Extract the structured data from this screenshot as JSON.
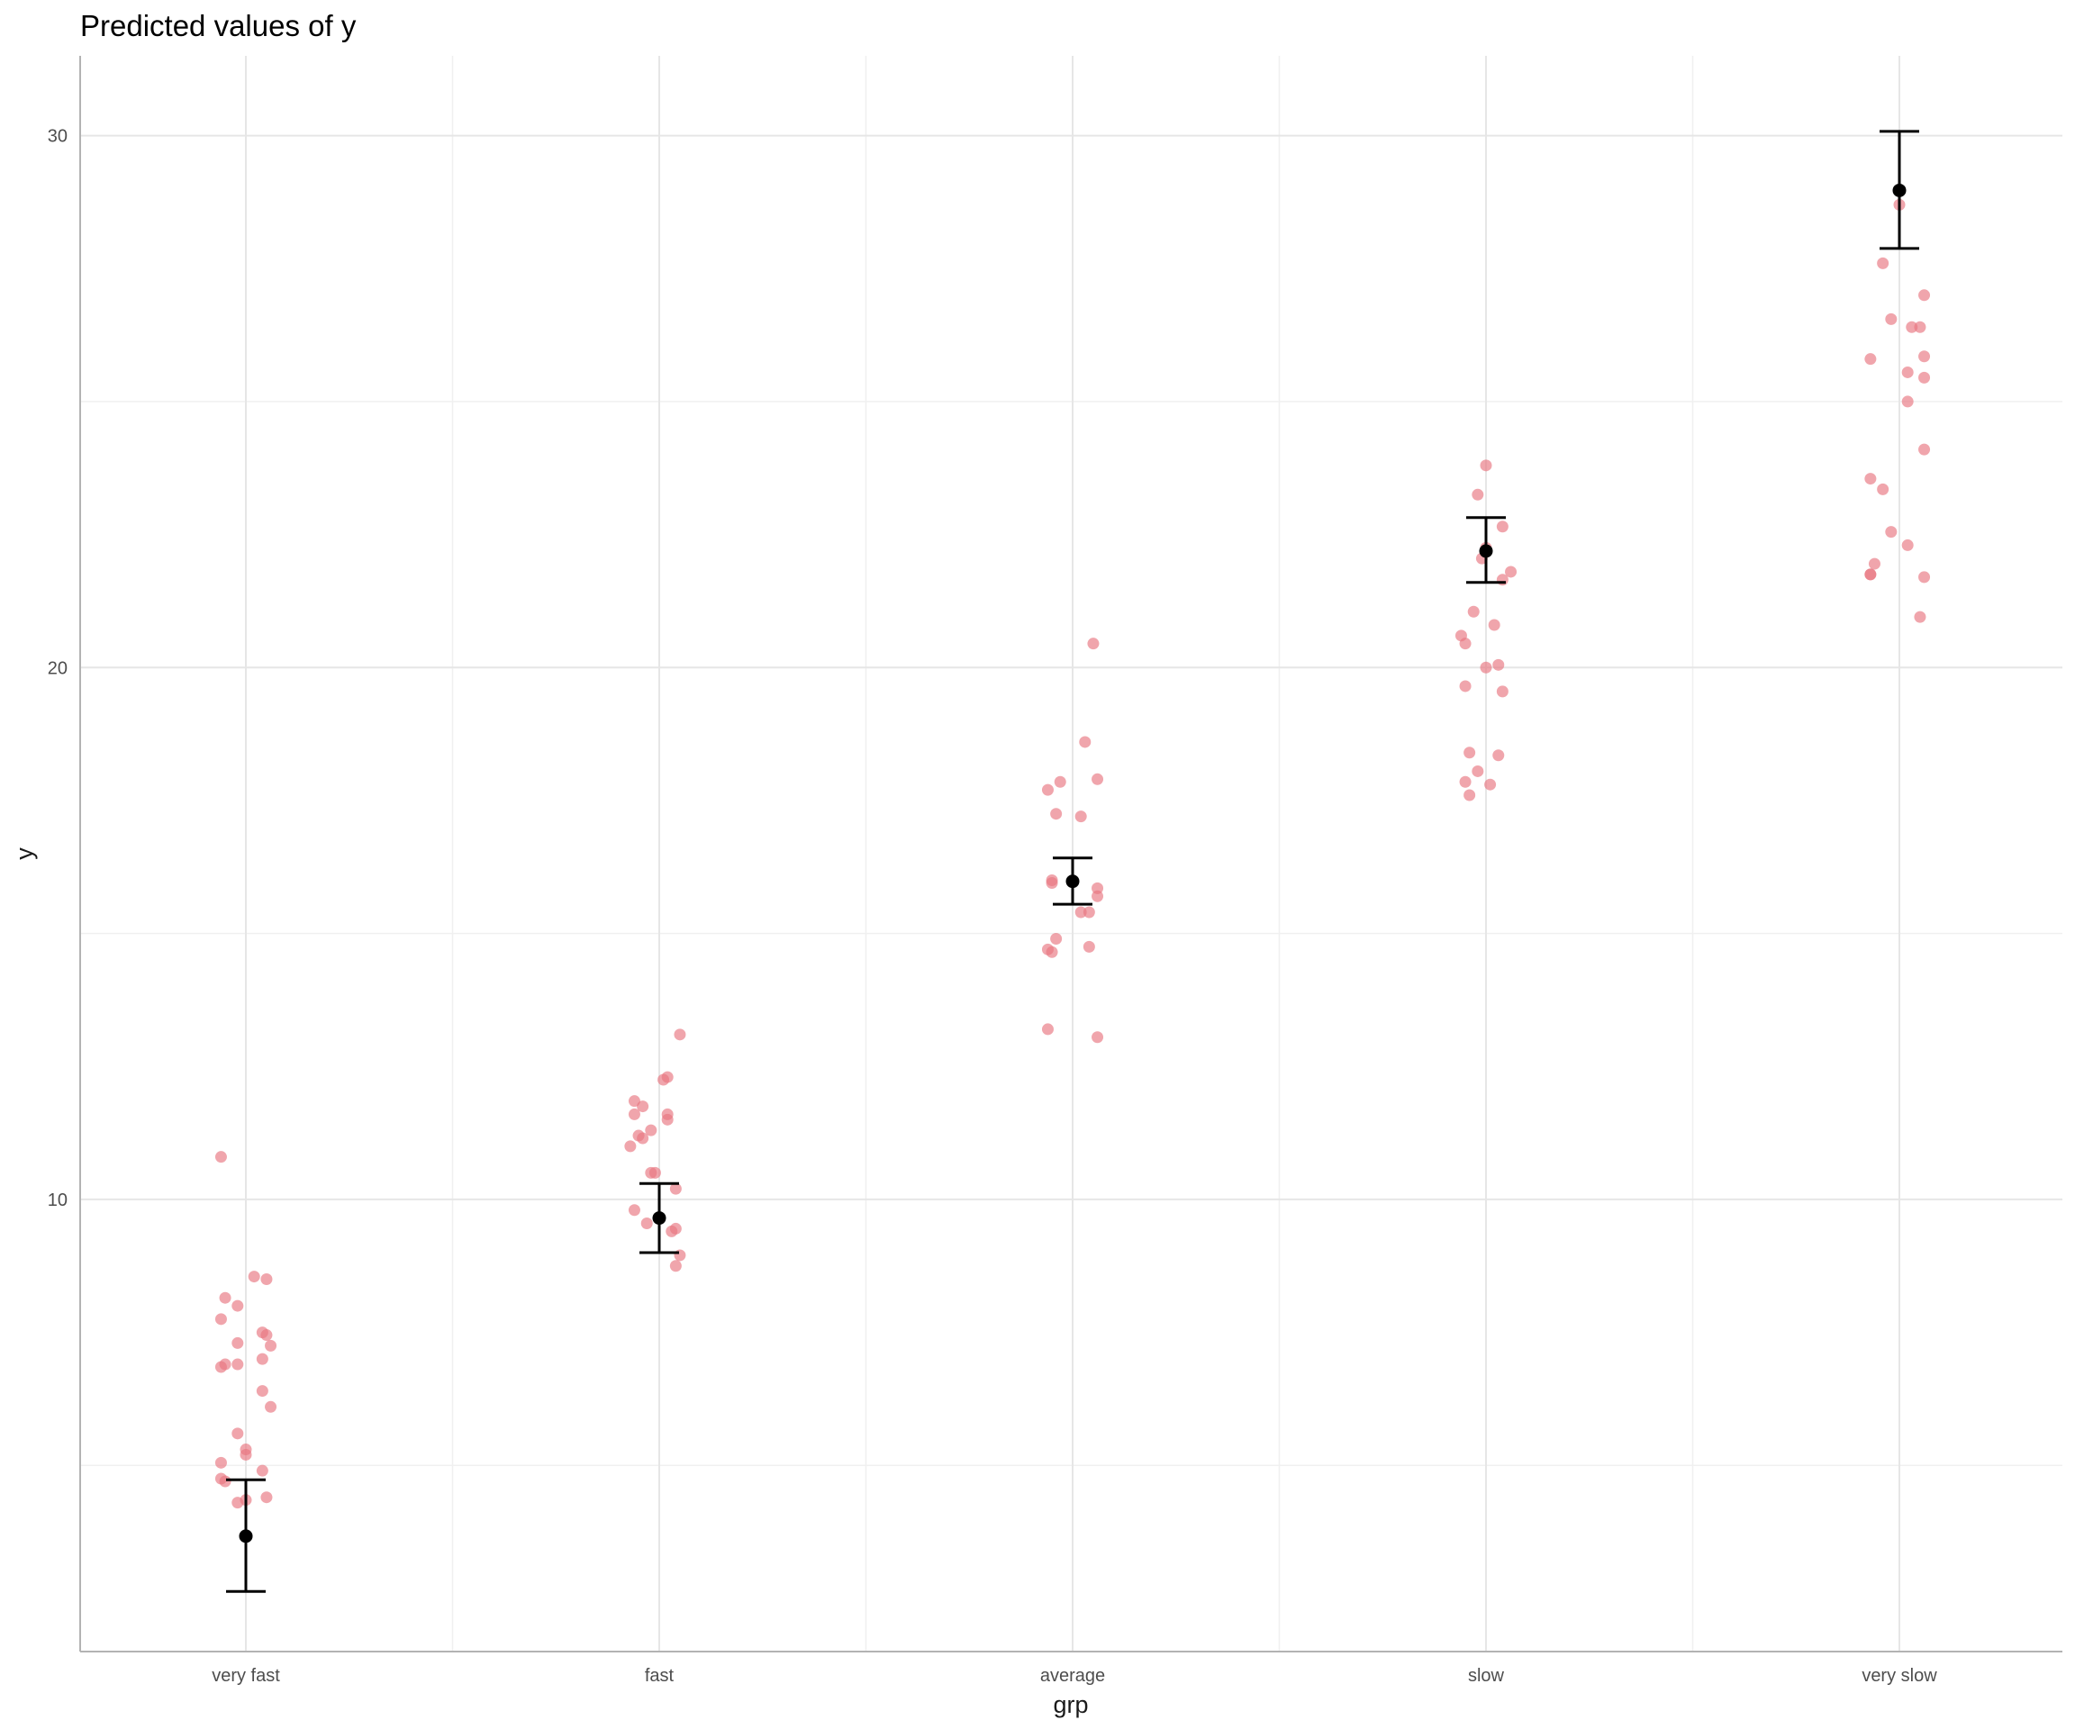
{
  "chart_data": {
    "type": "scatter",
    "title": "Predicted values of y",
    "xlabel": "grp",
    "ylabel": "y",
    "categories": [
      "very fast",
      "fast",
      "average",
      "slow",
      "very slow"
    ],
    "ylim": [
      1.5,
      31.5
    ],
    "yticks": [
      10,
      20,
      30
    ],
    "grid": true,
    "legend": "none",
    "colors": {
      "raw_points": "#e8747f",
      "estimate": "#000000",
      "grid_major": "#e6e6e6",
      "grid_minor": "#f0f0f0",
      "axis_line": "#b3b3b3"
    },
    "predicted": [
      {
        "category": "very fast",
        "estimate": 3.67,
        "ci_low": 2.63,
        "ci_high": 4.73
      },
      {
        "category": "fast",
        "estimate": 9.65,
        "ci_low": 9.0,
        "ci_high": 10.3
      },
      {
        "category": "average",
        "estimate": 15.98,
        "ci_low": 15.55,
        "ci_high": 16.42
      },
      {
        "category": "slow",
        "estimate": 22.19,
        "ci_low": 21.6,
        "ci_high": 22.82
      },
      {
        "category": "very slow",
        "estimate": 28.97,
        "ci_low": 27.88,
        "ci_high": 30.08
      }
    ],
    "raw_points": [
      {
        "category": "very fast",
        "jitter": [
          -0.06,
          0.02,
          0.05,
          -0.05,
          -0.02,
          -0.06,
          0.04,
          0.05,
          -0.02,
          0.06,
          0.04,
          -0.06,
          -0.02,
          -0.05,
          0.04,
          0.06,
          -0.02,
          0.0,
          0.0,
          -0.06,
          0.05,
          0.04,
          -0.05,
          0.0,
          -0.06,
          -0.02
        ],
        "y": [
          10.8,
          8.55,
          8.5,
          8.15,
          8.0,
          7.75,
          7.5,
          7.45,
          7.3,
          7.25,
          7.0,
          6.85,
          6.9,
          6.9,
          6.4,
          6.1,
          5.6,
          5.3,
          5.2,
          5.05,
          4.4,
          4.9,
          4.7,
          4.35,
          4.75,
          4.3
        ]
      },
      {
        "category": "fast",
        "jitter": [
          0.05,
          0.02,
          0.01,
          -0.06,
          -0.04,
          0.02,
          -0.06,
          -0.02,
          0.02,
          -0.05,
          -0.04,
          -0.07,
          -0.02,
          -0.01,
          0.04,
          -0.06,
          -0.03,
          0.04,
          0.03,
          0.05,
          0.04
        ],
        "y": [
          13.1,
          12.3,
          12.25,
          11.85,
          11.75,
          11.6,
          11.6,
          11.3,
          11.5,
          11.2,
          11.15,
          11.0,
          10.5,
          10.5,
          10.2,
          9.8,
          9.55,
          9.45,
          9.4,
          8.95,
          8.75
        ]
      },
      {
        "category": "average",
        "jitter": [
          0.05,
          0.03,
          0.06,
          -0.03,
          -0.06,
          -0.04,
          0.02,
          -0.05,
          0.06,
          -0.05,
          0.06,
          0.04,
          0.02,
          -0.04,
          0.04,
          -0.06,
          -0.05,
          0.06,
          -0.06
        ],
        "y": [
          20.45,
          18.6,
          17.9,
          17.85,
          17.7,
          17.25,
          17.2,
          16.0,
          15.85,
          15.95,
          15.7,
          15.4,
          15.4,
          14.9,
          14.75,
          14.7,
          14.65,
          13.05,
          13.2
        ]
      },
      {
        "category": "slow",
        "jitter": [
          0.0,
          -0.02,
          0.04,
          -0.01,
          0.0,
          0.06,
          0.04,
          -0.03,
          0.02,
          -0.06,
          -0.05,
          0.03,
          0.0,
          -0.05,
          0.04,
          -0.04,
          0.03,
          -0.02,
          -0.05,
          -0.04,
          0.01
        ],
        "y": [
          23.8,
          23.25,
          22.65,
          22.05,
          22.25,
          21.8,
          21.65,
          21.05,
          20.8,
          20.6,
          20.45,
          20.05,
          20.0,
          19.65,
          19.55,
          18.4,
          18.35,
          18.05,
          17.85,
          17.6,
          17.8
        ]
      },
      {
        "category": "very slow",
        "jitter": [
          0.0,
          -0.04,
          0.06,
          -0.02,
          0.03,
          0.05,
          -0.07,
          0.06,
          0.02,
          0.06,
          0.02,
          0.06,
          -0.07,
          -0.04,
          -0.02,
          0.02,
          -0.07,
          -0.06,
          0.06,
          -0.07,
          0.05
        ],
        "y": [
          28.7,
          27.6,
          27.0,
          26.55,
          26.4,
          26.4,
          25.8,
          25.85,
          25.55,
          25.45,
          25.0,
          24.1,
          23.55,
          23.35,
          22.55,
          22.3,
          21.75,
          21.95,
          21.7,
          21.75,
          20.95
        ]
      }
    ]
  }
}
